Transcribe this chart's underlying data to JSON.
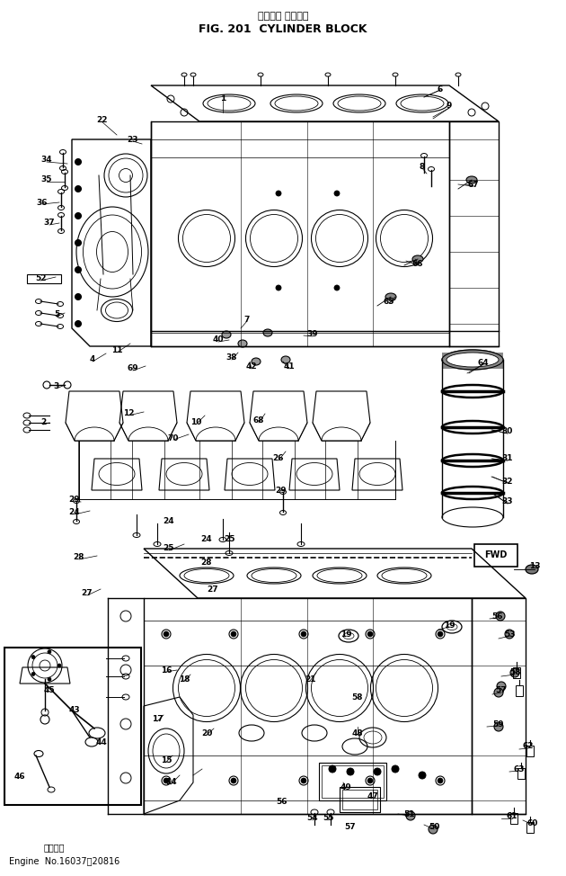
{
  "title_jp": "シリンダ ブロック",
  "title_en": "FIG. 201  CYLINDER BLOCK",
  "footer_jp": "適用機関",
  "footer_en": "Engine  No.16037～20816",
  "bg_color": "#ffffff",
  "labels": [
    [
      "1",
      248,
      110
    ],
    [
      "2",
      48,
      470
    ],
    [
      "3",
      63,
      430
    ],
    [
      "4",
      103,
      400
    ],
    [
      "5",
      63,
      350
    ],
    [
      "6",
      490,
      100
    ],
    [
      "7",
      275,
      355
    ],
    [
      "8",
      470,
      185
    ],
    [
      "9",
      500,
      118
    ],
    [
      "10",
      218,
      470
    ],
    [
      "11",
      130,
      390
    ],
    [
      "12",
      143,
      460
    ],
    [
      "13",
      595,
      630
    ],
    [
      "14",
      190,
      870
    ],
    [
      "15",
      185,
      845
    ],
    [
      "16",
      185,
      745
    ],
    [
      "17",
      175,
      800
    ],
    [
      "18",
      205,
      755
    ],
    [
      "19",
      500,
      695
    ],
    [
      "19",
      385,
      705
    ],
    [
      "20",
      230,
      815
    ],
    [
      "21",
      345,
      755
    ],
    [
      "22",
      113,
      133
    ],
    [
      "23",
      148,
      155
    ],
    [
      "24",
      83,
      570
    ],
    [
      "24",
      188,
      580
    ],
    [
      "24",
      230,
      600
    ],
    [
      "25",
      188,
      610
    ],
    [
      "25",
      255,
      600
    ],
    [
      "26",
      310,
      510
    ],
    [
      "27",
      97,
      660
    ],
    [
      "27",
      237,
      655
    ],
    [
      "28",
      88,
      620
    ],
    [
      "28",
      230,
      625
    ],
    [
      "29",
      83,
      555
    ],
    [
      "29",
      313,
      545
    ],
    [
      "30",
      565,
      480
    ],
    [
      "31",
      565,
      510
    ],
    [
      "32",
      565,
      535
    ],
    [
      "33",
      565,
      558
    ],
    [
      "34",
      52,
      178
    ],
    [
      "35",
      52,
      200
    ],
    [
      "36",
      47,
      225
    ],
    [
      "37",
      55,
      248
    ],
    [
      "38",
      258,
      398
    ],
    [
      "39",
      348,
      372
    ],
    [
      "40",
      243,
      378
    ],
    [
      "41",
      322,
      408
    ],
    [
      "42",
      280,
      408
    ],
    [
      "43",
      83,
      790
    ],
    [
      "44",
      113,
      825
    ],
    [
      "45",
      55,
      768
    ],
    [
      "46",
      22,
      863
    ],
    [
      "47",
      415,
      885
    ],
    [
      "48",
      398,
      815
    ],
    [
      "49",
      385,
      875
    ],
    [
      "50",
      483,
      920
    ],
    [
      "51",
      455,
      905
    ],
    [
      "52",
      45,
      310
    ],
    [
      "53",
      568,
      705
    ],
    [
      "54",
      348,
      910
    ],
    [
      "55",
      365,
      910
    ],
    [
      "56",
      313,
      892
    ],
    [
      "56",
      553,
      685
    ],
    [
      "57",
      390,
      920
    ],
    [
      "57",
      558,
      768
    ],
    [
      "58",
      398,
      775
    ],
    [
      "58",
      573,
      748
    ],
    [
      "59",
      555,
      805
    ],
    [
      "60",
      593,
      915
    ],
    [
      "61",
      570,
      908
    ],
    [
      "62",
      588,
      830
    ],
    [
      "63",
      578,
      855
    ],
    [
      "64",
      538,
      403
    ],
    [
      "65",
      433,
      335
    ],
    [
      "66",
      465,
      293
    ],
    [
      "67",
      527,
      205
    ],
    [
      "68",
      288,
      468
    ],
    [
      "69",
      148,
      410
    ],
    [
      "70",
      193,
      487
    ]
  ]
}
